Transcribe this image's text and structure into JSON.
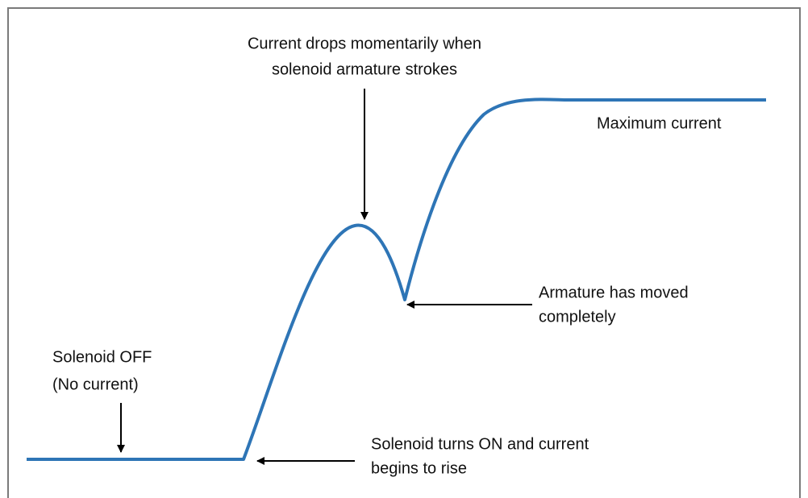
{
  "annotations": [
    {
      "lines": [
        "Current drops momentarily when",
        "solenoid armature strokes"
      ]
    },
    {
      "lines": [
        "Maximum current"
      ]
    },
    {
      "lines": [
        "Armature has moved",
        "completely"
      ]
    },
    {
      "lines": [
        "Solenoid OFF",
        "(No current)"
      ]
    },
    {
      "lines": [
        "Solenoid turns ON and current",
        "begins to rise"
      ]
    }
  ]
}
